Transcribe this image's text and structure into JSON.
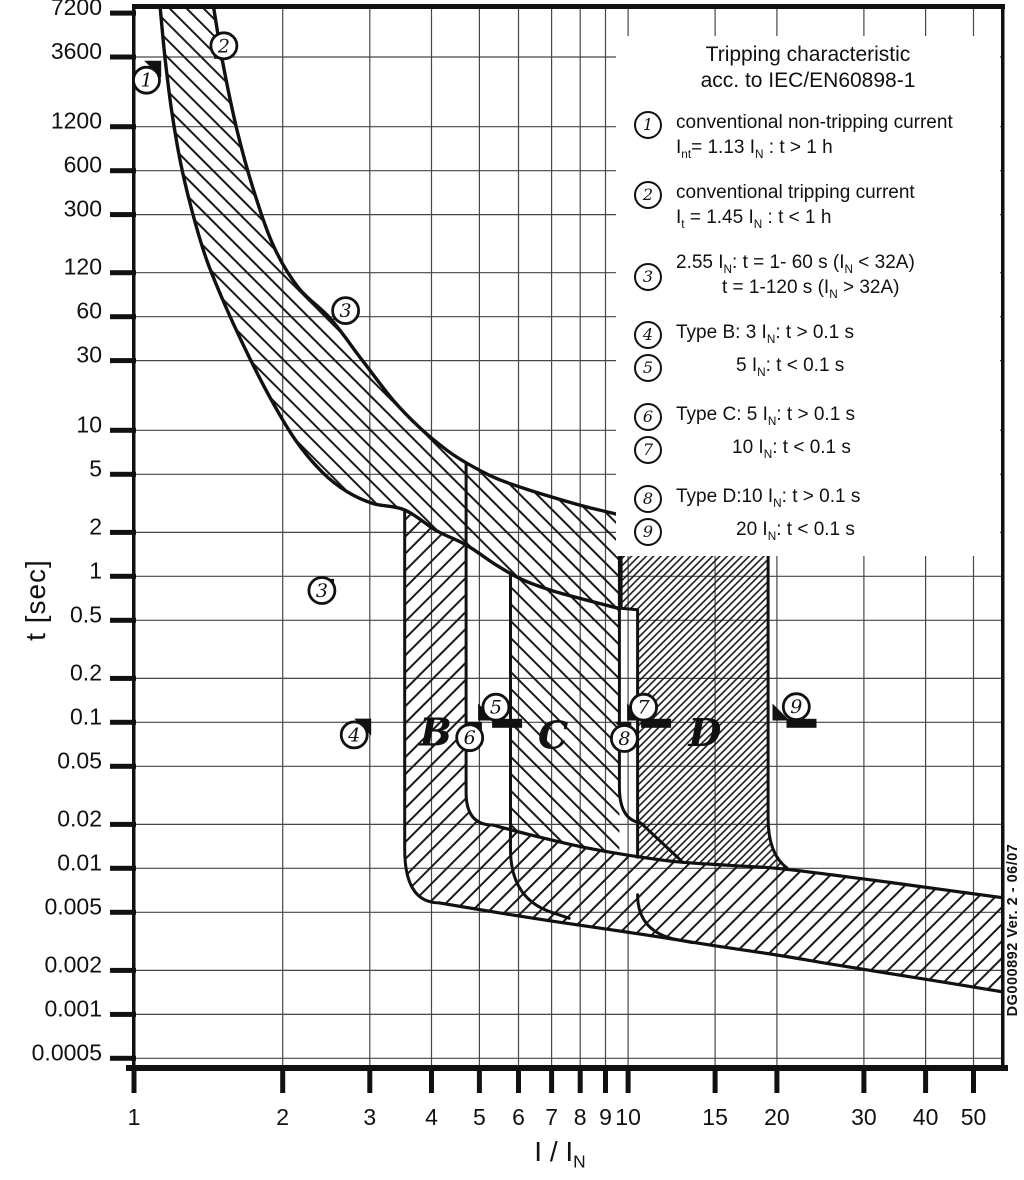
{
  "chart_data": {
    "type": "area",
    "title": "Tripping characteristic",
    "subtitle": "acc. to IEC/EN60898-1",
    "xlabel": "I / I_{N}",
    "ylabel": "t [sec]",
    "x_ticks": [
      1,
      2,
      3,
      4,
      5,
      6,
      7,
      8,
      9,
      10,
      15,
      20,
      30,
      40,
      50
    ],
    "y_ticks": [
      7200,
      3600,
      1200,
      600,
      300,
      120,
      60,
      30,
      10,
      5,
      2,
      1,
      0.5,
      0.2,
      0.1,
      0.05,
      0.02,
      0.01,
      0.005,
      0.002,
      0.001,
      0.0005
    ],
    "x_range": [
      1,
      57.1
    ],
    "y_range": [
      0.00045,
      7800
    ],
    "grid": true,
    "legend_position": "top-right",
    "legend": [
      {
        "num": "1",
        "lines": [
          "conventional non-tripping current",
          "I_{nt}= 1.13 I_{N} : t > 1 h"
        ]
      },
      {
        "num": "2",
        "lines": [
          "conventional tripping current",
          "I_{t} = 1.45 I_{N} : t < 1 h"
        ],
        "gap": true
      },
      {
        "num": "3",
        "lines": [
          "2.55 I_{N}: t = 1- 60 s (I_{N} < 32A)",
          "t = 1-120 s (I_{N} > 32A)"
        ],
        "circle": "middle",
        "indent2": 46,
        "gap": true
      },
      {
        "num": "4",
        "lines": [
          "Type B: 3 I_{N}: t > 0.1 s"
        ],
        "gap": true
      },
      {
        "num": "5",
        "lines": [
          "5 I_{N}: t < 0.1 s"
        ],
        "indent1": 60
      },
      {
        "num": "6",
        "lines": [
          "Type C: 5 I_{N}: t > 0.1 s"
        ],
        "gap": true
      },
      {
        "num": "7",
        "lines": [
          "10 I_{N}: t < 0.1 s"
        ],
        "indent1": 56
      },
      {
        "num": "8",
        "lines": [
          "Type D:10 I_{N}: t > 0.1 s"
        ],
        "gap": true
      },
      {
        "num": "9",
        "lines": [
          "20 I_{N}: t < 0.1 s"
        ],
        "indent1": 60
      }
    ],
    "series": {
      "thermal_lower": [
        [
          1.13,
          7800
        ],
        [
          1.155,
          3600
        ],
        [
          1.19,
          1600
        ],
        [
          1.24,
          700
        ],
        [
          1.31,
          320
        ],
        [
          1.4,
          150
        ],
        [
          1.52,
          75
        ],
        [
          1.68,
          36
        ],
        [
          1.88,
          17
        ],
        [
          2.12,
          8.6
        ],
        [
          2.4,
          5.2
        ],
        [
          2.7,
          3.8
        ],
        [
          3.05,
          3.15
        ],
        [
          3.53,
          2.85
        ],
        [
          4.1,
          2.05
        ],
        [
          4.7,
          1.64
        ],
        [
          5.4,
          1.2
        ],
        [
          6.1,
          0.95
        ],
        [
          7.0,
          0.8
        ],
        [
          8.2,
          0.69
        ],
        [
          9.62,
          0.6
        ]
      ],
      "thermal_upper": [
        [
          1.45,
          7800
        ],
        [
          1.52,
          3000
        ],
        [
          1.62,
          1100
        ],
        [
          1.75,
          430
        ],
        [
          1.92,
          180
        ],
        [
          2.15,
          95
        ],
        [
          2.5,
          58
        ],
        [
          2.9,
          30
        ],
        [
          3.35,
          16
        ],
        [
          3.8,
          10.3
        ],
        [
          4.3,
          7.3
        ],
        [
          4.74,
          5.9
        ],
        [
          5.4,
          4.7
        ],
        [
          6.3,
          3.9
        ],
        [
          7.2,
          3.4
        ],
        [
          8.2,
          3.0
        ],
        [
          9.0,
          2.78
        ],
        [
          9.62,
          2.62
        ]
      ],
      "d_top": [
        [
          9.68,
          2.6
        ],
        [
          10.8,
          2.28
        ],
        [
          12.0,
          2.05
        ],
        [
          13.5,
          1.9
        ],
        [
          15.5,
          1.8
        ],
        [
          17.5,
          1.74
        ],
        [
          19.2,
          1.71
        ]
      ],
      "bottom_top": [
        [
          5.32,
          0.0198
        ],
        [
          6.5,
          0.0166
        ],
        [
          8,
          0.0141
        ],
        [
          10,
          0.0123
        ],
        [
          12.5,
          0.0111
        ],
        [
          16,
          0.0105
        ],
        [
          20,
          0.01
        ],
        [
          26,
          0.009
        ],
        [
          34,
          0.008
        ],
        [
          44,
          0.0071
        ],
        [
          57,
          0.0063
        ]
      ],
      "bottom_bottom": [
        [
          4.15,
          0.0058
        ],
        [
          5.5,
          0.00495
        ],
        [
          7,
          0.00435
        ],
        [
          9,
          0.00385
        ],
        [
          11.5,
          0.0034
        ],
        [
          15,
          0.00295
        ],
        [
          20,
          0.00255
        ],
        [
          26,
          0.0022
        ],
        [
          34,
          0.0019
        ],
        [
          44,
          0.00165
        ],
        [
          57,
          0.00143
        ]
      ],
      "b_strip": {
        "x1": 3.53,
        "x2": 4.7,
        "left_top_t": 2.85,
        "right_top_t": 5.9
      },
      "c_strip": {
        "x1": 5.78,
        "x2": 9.6,
        "left_top_t": 1.02,
        "right_top_t": 2.63
      },
      "d_strip": {
        "x1": 10.45,
        "x2": 19.2,
        "notch_x": 9.68,
        "notch_t": 0.59
      }
    },
    "markers": [
      {
        "num": "1",
        "x": 1.06,
        "t": 2500,
        "flag": "tr",
        "tip": [
          1.135,
          3400
        ]
      },
      {
        "num": "2",
        "x": 1.52,
        "t": 4300,
        "flag": "bl",
        "tip": [
          1.452,
          3500
        ]
      },
      {
        "num": "3",
        "x": 2.68,
        "t": 66,
        "flag": "bl",
        "tip": [
          2.53,
          57
        ]
      },
      {
        "num": "3",
        "x": 2.4,
        "t": 0.8,
        "flag": "tr",
        "tip": [
          2.54,
          0.96
        ]
      },
      {
        "num": "4",
        "x": 2.79,
        "t": 0.082,
        "flag": "tr",
        "tip": [
          3.02,
          0.106
        ]
      },
      {
        "num": "5",
        "x": 5.4,
        "t": 0.127,
        "flag": "bl",
        "tip": [
          4.97,
          0.103
        ],
        "bar": true
      },
      {
        "num": "6",
        "x": 4.78,
        "t": 0.0785,
        "flag": "tr",
        "tip": [
          5.06,
          0.101
        ]
      },
      {
        "num": "7",
        "x": 10.75,
        "t": 0.127,
        "flag": "bl",
        "tip": [
          9.95,
          0.103
        ],
        "bar": true
      },
      {
        "num": "8",
        "x": 9.83,
        "t": 0.0775,
        "flag": "tr",
        "tip": [
          10.15,
          0.101
        ]
      },
      {
        "num": "9",
        "x": 21.9,
        "t": 0.128,
        "flag": "bl",
        "tip": [
          19.6,
          0.103
        ],
        "bar": true
      }
    ],
    "region_labels": [
      {
        "text": "B",
        "x": 4.08,
        "t": 0.0695
      },
      {
        "text": "C",
        "x": 7.05,
        "t": 0.066
      },
      {
        "text": "D",
        "x": 14.3,
        "t": 0.069
      }
    ],
    "watermark": "DG000892 Ver. 2 - 06/07",
    "colors": {
      "ink": "#111111",
      "grid": "#474747",
      "hatch": "#1a1a1a",
      "background": "#ffffff"
    }
  }
}
